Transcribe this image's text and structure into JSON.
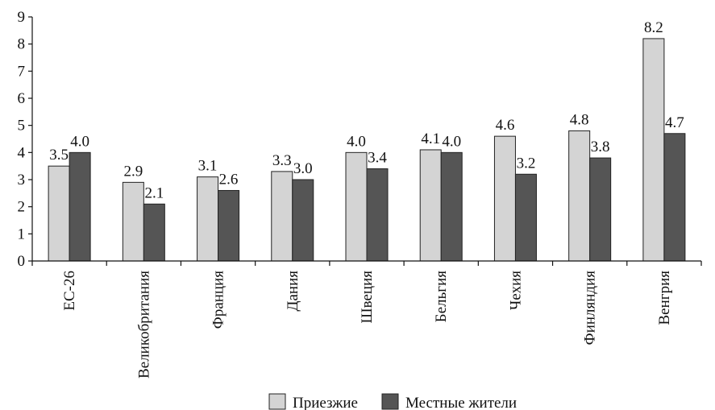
{
  "chart_data": {
    "type": "bar",
    "title": "",
    "xlabel": "",
    "ylabel": "",
    "ylim": [
      0,
      9
    ],
    "yticks": [
      "0",
      "1",
      "2",
      "3",
      "4",
      "5",
      "6",
      "7",
      "8",
      "9"
    ],
    "categories": [
      "ЕС-26",
      "Великобритания",
      "Франция",
      "Дания",
      "Швеция",
      "Бельгия",
      "Чехия",
      "Финляндия",
      "Венгрия"
    ],
    "series": [
      {
        "name": "Приезжие",
        "color": "#d4d4d4",
        "values": [
          3.5,
          2.9,
          3.1,
          3.3,
          4.0,
          4.1,
          4.6,
          4.8,
          8.2
        ],
        "labels": [
          "3.5",
          "2.9",
          "3.1",
          "3.3",
          "4.0",
          "4.1",
          "4.6",
          "4.8",
          "8.2"
        ]
      },
      {
        "name": "Местные жители",
        "color": "#555555",
        "values": [
          4.0,
          2.1,
          2.6,
          3.0,
          3.4,
          4.0,
          3.2,
          3.8,
          4.7
        ],
        "labels": [
          "4.0",
          "2.1",
          "2.6",
          "3.0",
          "3.4",
          "4.0",
          "3.2",
          "3.8",
          "4.7"
        ]
      }
    ],
    "grid": false,
    "legend_position": "bottom"
  }
}
